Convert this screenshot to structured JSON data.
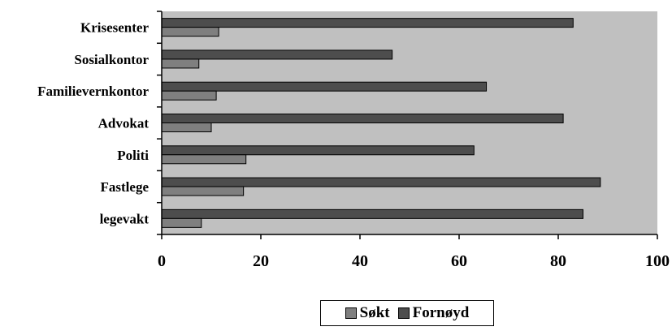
{
  "chart_data": {
    "type": "bar",
    "orientation": "horizontal",
    "categories": [
      "Krisesenter",
      "Sosialkontor",
      "Familievernkontor",
      "Advokat",
      "Politi",
      "Fastlege",
      "legevakt"
    ],
    "series": [
      {
        "name": "Søkt",
        "values": [
          11.5,
          7.5,
          11,
          10,
          17,
          16.5,
          8
        ],
        "color": "#7f7f7f"
      },
      {
        "name": "Fornøyd",
        "values": [
          83,
          46.5,
          65.5,
          81,
          63,
          88.5,
          85
        ],
        "color": "#4d4d4d"
      }
    ],
    "x_ticks": [
      "0",
      "20",
      "40",
      "60",
      "80",
      "100"
    ],
    "xlim": [
      0,
      100
    ],
    "plot_background": "#c0c0c0",
    "grid": false,
    "legend_position": "bottom"
  }
}
